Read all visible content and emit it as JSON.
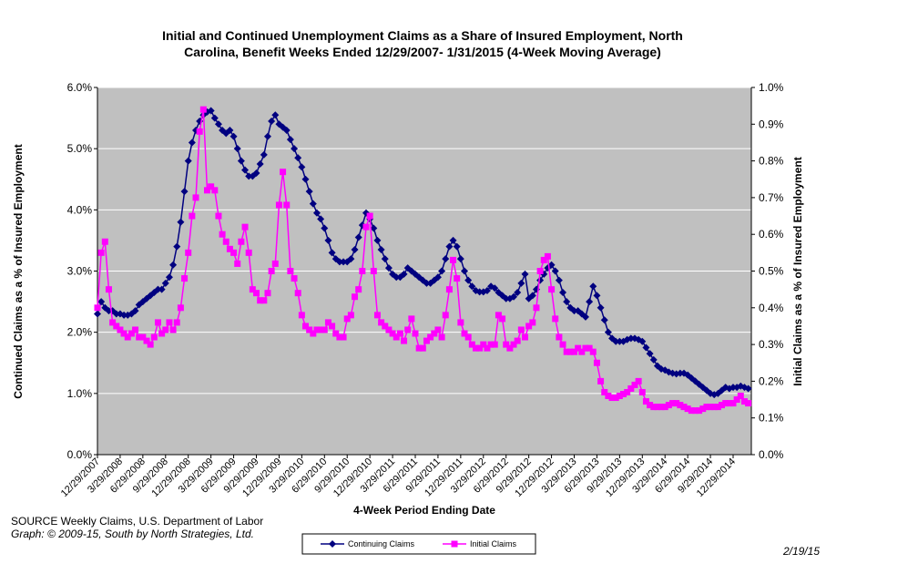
{
  "chart_data": {
    "type": "line",
    "title": [
      "Initial and Continued Unemployment Claims as a Share of Insured Employment, North",
      "Carolina, Benefit Weeks Ended 12/29/2007- 1/31/2015 (4-Week Moving Average)"
    ],
    "y_label": "Continued Claims as a % of Insured Employment",
    "y2_label": "Initial Claims as a % of Insured Employment",
    "x_label": "4-Week Period Ending Date",
    "source": [
      "SOURCE  Weekly Claims, U.S. Department of Labor",
      "Graph: © 2009-15, South by North Strategies, Ltd."
    ],
    "date_note": "2/19/15",
    "ylim": [
      0,
      6
    ],
    "yticks": [
      {
        "value": 0,
        "label": "0.0%"
      },
      {
        "value": 1,
        "label": "1.0%"
      },
      {
        "value": 2,
        "label": "2.0%"
      },
      {
        "value": 3,
        "label": "3.0%"
      },
      {
        "value": 4,
        "label": "4.0%"
      },
      {
        "value": 5,
        "label": "5.0%"
      },
      {
        "value": 6,
        "label": "6.0%"
      }
    ],
    "y2lim": [
      0,
      1
    ],
    "y2ticks": [
      {
        "value": 0,
        "label": "0.0%"
      },
      {
        "value": 0.1,
        "label": "0.1%"
      },
      {
        "value": 0.2,
        "label": "0.2%"
      },
      {
        "value": 0.3,
        "label": "0.3%"
      },
      {
        "value": 0.4,
        "label": "0.4%"
      },
      {
        "value": 0.5,
        "label": "0.5%"
      },
      {
        "value": 0.6,
        "label": "0.6%"
      },
      {
        "value": 0.7,
        "label": "0.7%"
      },
      {
        "value": 0.8,
        "label": "0.8%"
      },
      {
        "value": 0.9,
        "label": "0.9%"
      },
      {
        "value": 1,
        "label": "1.0%"
      }
    ],
    "grid": true,
    "categories": [
      "12/29/2007",
      null,
      null,
      null,
      null,
      null,
      "3/29/2008",
      null,
      null,
      null,
      null,
      null,
      "6/29/2008",
      null,
      null,
      null,
      null,
      null,
      "9/29/2008",
      null,
      null,
      null,
      null,
      null,
      "12/29/2008",
      null,
      null,
      null,
      null,
      null,
      "3/29/2009",
      null,
      null,
      null,
      null,
      null,
      "6/29/2009",
      null,
      null,
      null,
      null,
      null,
      "9/29/2009",
      null,
      null,
      null,
      null,
      null,
      "12/29/2009",
      null,
      null,
      null,
      null,
      null,
      "3/29/2010",
      null,
      null,
      null,
      null,
      null,
      "6/29/2010",
      null,
      null,
      null,
      null,
      null,
      "9/29/2010",
      null,
      null,
      null,
      null,
      null,
      "12/29/2010",
      null,
      null,
      null,
      null,
      null,
      "3/29/2011",
      null,
      null,
      null,
      null,
      null,
      "6/29/2011",
      null,
      null,
      null,
      null,
      null,
      "9/29/2011",
      null,
      null,
      null,
      null,
      null,
      "12/29/2011",
      null,
      null,
      null,
      null,
      null,
      "3/29/2012",
      null,
      null,
      null,
      null,
      null,
      "6/29/2012",
      null,
      null,
      null,
      null,
      null,
      "9/29/2012",
      null,
      null,
      null,
      null,
      null,
      "12/29/2012",
      null,
      null,
      null,
      null,
      null,
      "3/29/2013",
      null,
      null,
      null,
      null,
      null,
      "6/29/2013",
      null,
      null,
      null,
      null,
      null,
      "9/29/2013",
      null,
      null,
      null,
      null,
      null,
      "12/29/2013",
      null,
      null,
      null,
      null,
      null,
      "3/29/2014",
      null,
      null,
      null,
      null,
      null,
      "6/29/2014",
      null,
      null,
      null,
      null,
      null,
      "9/29/2014",
      null,
      null,
      null,
      null,
      null,
      "12/29/2014",
      null,
      null,
      null,
      null
    ],
    "series": [
      {
        "name": "Continuing Claims",
        "color": "#000080",
        "marker": "diamond",
        "values": [
          2.3,
          2.5,
          2.4,
          2.35,
          2.35,
          2.3,
          2.3,
          2.28,
          2.28,
          2.3,
          2.35,
          2.45,
          2.5,
          2.55,
          2.6,
          2.65,
          2.7,
          2.7,
          2.8,
          2.9,
          3.1,
          3.4,
          3.8,
          4.3,
          4.8,
          5.1,
          5.3,
          5.45,
          5.55,
          5.6,
          5.62,
          5.5,
          5.4,
          5.3,
          5.25,
          5.3,
          5.2,
          5.0,
          4.8,
          4.65,
          4.55,
          4.55,
          4.6,
          4.75,
          4.9,
          5.2,
          5.45,
          5.55,
          5.4,
          5.35,
          5.3,
          5.15,
          5.0,
          4.85,
          4.7,
          4.5,
          4.3,
          4.1,
          3.95,
          3.85,
          3.7,
          3.5,
          3.3,
          3.2,
          3.15,
          3.15,
          3.15,
          3.2,
          3.35,
          3.55,
          3.75,
          3.95,
          3.85,
          3.7,
          3.5,
          3.35,
          3.2,
          3.05,
          2.95,
          2.9,
          2.9,
          2.95,
          3.05,
          3.0,
          2.95,
          2.9,
          2.85,
          2.8,
          2.8,
          2.85,
          2.9,
          3.0,
          3.2,
          3.4,
          3.5,
          3.4,
          3.2,
          3.0,
          2.85,
          2.75,
          2.68,
          2.66,
          2.66,
          2.68,
          2.75,
          2.72,
          2.65,
          2.6,
          2.55,
          2.55,
          2.58,
          2.65,
          2.8,
          2.95,
          2.55,
          2.6,
          2.7,
          2.85,
          2.95,
          3.05,
          3.1,
          3.0,
          2.85,
          2.65,
          2.5,
          2.4,
          2.35,
          2.35,
          2.3,
          2.25,
          2.5,
          2.75,
          2.6,
          2.4,
          2.2,
          2.0,
          1.9,
          1.85,
          1.85,
          1.85,
          1.88,
          1.9,
          1.9,
          1.88,
          1.85,
          1.75,
          1.65,
          1.55,
          1.45,
          1.4,
          1.38,
          1.35,
          1.33,
          1.32,
          1.33,
          1.33,
          1.3,
          1.25,
          1.2,
          1.15,
          1.1,
          1.05,
          1.0,
          0.98,
          1.0,
          1.05,
          1.1,
          1.08,
          1.1,
          1.1,
          1.12,
          1.1,
          1.08
        ]
      },
      {
        "name": "Initial Claims",
        "color": "#ff00ff",
        "marker": "square",
        "axis": "y2",
        "values": [
          0.4,
          0.55,
          0.58,
          0.45,
          0.36,
          0.35,
          0.34,
          0.33,
          0.32,
          0.33,
          0.34,
          0.32,
          0.32,
          0.31,
          0.3,
          0.32,
          0.36,
          0.33,
          0.34,
          0.36,
          0.34,
          0.36,
          0.4,
          0.48,
          0.55,
          0.65,
          0.7,
          0.88,
          0.94,
          0.72,
          0.73,
          0.72,
          0.65,
          0.6,
          0.58,
          0.56,
          0.55,
          0.52,
          0.58,
          0.62,
          0.55,
          0.45,
          0.44,
          0.42,
          0.42,
          0.44,
          0.5,
          0.52,
          0.68,
          0.77,
          0.68,
          0.5,
          0.48,
          0.44,
          0.38,
          0.35,
          0.34,
          0.33,
          0.34,
          0.34,
          0.34,
          0.36,
          0.35,
          0.33,
          0.32,
          0.32,
          0.37,
          0.38,
          0.43,
          0.45,
          0.5,
          0.62,
          0.65,
          0.5,
          0.38,
          0.36,
          0.35,
          0.34,
          0.33,
          0.32,
          0.33,
          0.31,
          0.34,
          0.37,
          0.33,
          0.29,
          0.29,
          0.31,
          0.32,
          0.33,
          0.34,
          0.32,
          0.38,
          0.45,
          0.53,
          0.48,
          0.36,
          0.33,
          0.32,
          0.3,
          0.29,
          0.29,
          0.3,
          0.29,
          0.3,
          0.3,
          0.38,
          0.37,
          0.3,
          0.29,
          0.3,
          0.31,
          0.34,
          0.32,
          0.35,
          0.36,
          0.4,
          0.5,
          0.53,
          0.54,
          0.45,
          0.37,
          0.32,
          0.3,
          0.28,
          0.28,
          0.28,
          0.29,
          0.28,
          0.29,
          0.29,
          0.28,
          0.25,
          0.2,
          0.17,
          0.16,
          0.155,
          0.155,
          0.16,
          0.165,
          0.17,
          0.18,
          0.19,
          0.2,
          0.17,
          0.145,
          0.135,
          0.13,
          0.13,
          0.13,
          0.13,
          0.135,
          0.14,
          0.14,
          0.135,
          0.13,
          0.125,
          0.12,
          0.12,
          0.12,
          0.125,
          0.13,
          0.13,
          0.13,
          0.13,
          0.135,
          0.14,
          0.14,
          0.14,
          0.15,
          0.16,
          0.145,
          0.14
        ]
      }
    ]
  }
}
